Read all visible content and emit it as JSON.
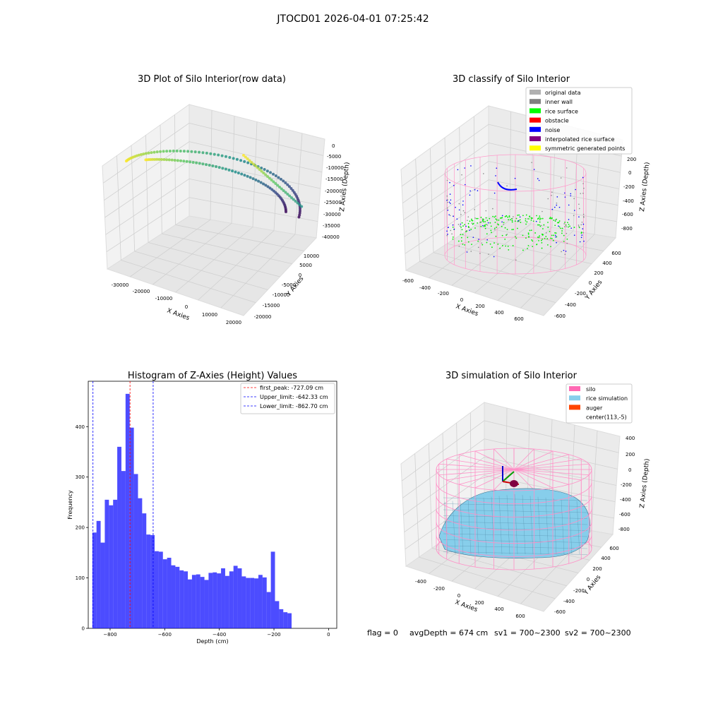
{
  "figure": {
    "suptitle": "JTOCD01 2026-04-01 07:25:42",
    "footer": {
      "flag": "flag = 0",
      "avg_depth": "avgDepth = 674 cm",
      "sv1": "sv1 = 700~2300",
      "sv2": "sv2 = 700~2300"
    }
  },
  "chart_data": [
    {
      "id": "raw3d",
      "type": "scatter",
      "projection": "3d",
      "title": "3D Plot of Silo Interior(row data)",
      "xlabel": "X Axies",
      "ylabel": "Y Axies",
      "zlabel": "Z Axies (Depth)",
      "x_ticks": [
        "-30000",
        "-20000",
        "-10000",
        "0",
        "10000",
        "20000"
      ],
      "y_ticks": [
        "-20000",
        "-15000",
        "-10000",
        "-5000",
        "0",
        "5000",
        "10000"
      ],
      "z_ticks": [
        "-40000",
        "-35000",
        "-30000",
        "-25000",
        "-20000",
        "-15000",
        "-10000",
        "-5000",
        "0"
      ],
      "colormap": "viridis",
      "series": [
        {
          "values_from": "two spiral arcs descending from about -10000 to -42000 depth"
        }
      ]
    },
    {
      "id": "classify3d",
      "type": "scatter",
      "projection": "3d",
      "title": "3D classify of Silo Interior",
      "xlabel": "X Axies",
      "ylabel": "Y Axies",
      "zlabel": "Z Axies (Depth)",
      "x_ticks": [
        "-600",
        "-400",
        "-200",
        "0",
        "200",
        "400",
        "600"
      ],
      "y_ticks": [
        "-600",
        "-400",
        "-200",
        "0",
        "200",
        "400",
        "600"
      ],
      "z_ticks": [
        "-800",
        "-600",
        "-400",
        "-200",
        "0",
        "200"
      ],
      "legend_position": "top-right",
      "legend": [
        {
          "label": "original data",
          "color": "#b0b0b0"
        },
        {
          "label": "inner wall",
          "color": "#808080"
        },
        {
          "label": "rice surface",
          "color": "#00ff00"
        },
        {
          "label": "obstacle",
          "color": "#ff0000"
        },
        {
          "label": "noise",
          "color": "#0000ff"
        },
        {
          "label": "interpolated rice surface",
          "color": "#800080"
        },
        {
          "label": "symmetric generated points",
          "color": "#ffff00"
        }
      ]
    },
    {
      "id": "hist",
      "type": "bar",
      "title": "Histogram of Z-Axies (Height) Values",
      "xlabel": "Depth (cm)",
      "ylabel": "Frequency",
      "xlim": [
        -880,
        30
      ],
      "ylim": [
        0,
        490
      ],
      "x_ticks": [
        -800,
        -600,
        -400,
        -200,
        0
      ],
      "y_ticks": [
        0,
        100,
        200,
        300,
        400
      ],
      "bar_color": "#0000ff",
      "bin_start": -865,
      "bin_width": 15.2,
      "values": [
        190,
        213,
        170,
        255,
        244,
        255,
        360,
        312,
        465,
        398,
        306,
        258,
        228,
        186,
        185,
        153,
        152,
        137,
        140,
        125,
        122,
        115,
        113,
        97,
        106,
        107,
        102,
        96,
        110,
        111,
        109,
        119,
        104,
        113,
        124,
        119,
        103,
        100,
        100,
        99,
        106,
        101,
        72,
        152,
        54,
        38,
        32,
        30
      ],
      "legend_position": "top-right",
      "lines": [
        {
          "label": "first_peak: -727.09 cm",
          "x": -727.09,
          "color": "#ff0000"
        },
        {
          "label": "Upper_limit: -642.33 cm",
          "x": -642.33,
          "color": "#0000ff"
        },
        {
          "label": "Lower_limit: -862.70 cm",
          "x": -862.7,
          "color": "#0000ff"
        }
      ]
    },
    {
      "id": "sim3d",
      "type": "surface",
      "projection": "3d",
      "title": "3D simulation of Silo Interior",
      "xlabel": "X Axies",
      "ylabel": "Y Axies",
      "zlabel": "Z Axies (Depth)",
      "x_ticks": [
        "-400",
        "-200",
        "0",
        "200",
        "400",
        "600"
      ],
      "y_ticks": [
        "-600",
        "-400",
        "-200",
        "0",
        "200",
        "400",
        "600"
      ],
      "z_ticks": [
        "-800",
        "-600",
        "-400",
        "-200",
        "0",
        "200",
        "400"
      ],
      "legend_position": "top-right",
      "legend": [
        {
          "label": "silo",
          "color": "#ff69b4"
        },
        {
          "label": "rice simulation",
          "color": "#87ceeb"
        },
        {
          "label": "auger",
          "color": "#ff4500"
        },
        {
          "label": "center(113,-5)",
          "color": ""
        }
      ]
    }
  ]
}
